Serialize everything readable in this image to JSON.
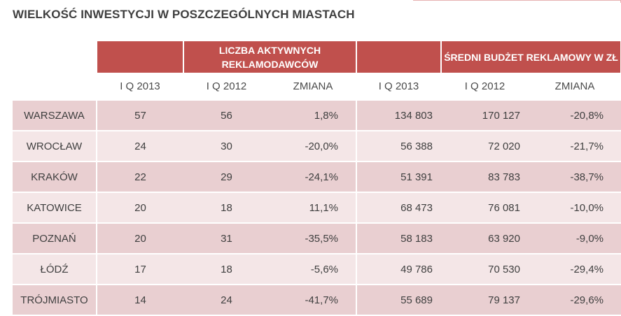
{
  "title": "WIELKOŚĆ INWESTYCJI W POSZCZEGÓLNYCH MIASTACH",
  "header": {
    "group1_label": "LICZBA AKTYWNYCH REKLAMODAWCÓW",
    "group2_label": "ŚREDNI BUDŻET REKLAMOWY W ZŁ",
    "sub_labels": [
      "I Q 2013",
      "I Q 2012",
      "ZMIANA",
      "I Q 2013",
      "I Q 2012",
      "ZMIANA"
    ]
  },
  "rows": [
    {
      "city": "WARSZAWA",
      "a2013": "57",
      "a2012": "56",
      "achg": "1,8%",
      "b2013": "134 803",
      "b2012": "170 127",
      "bchg": "-20,8%"
    },
    {
      "city": "WROCŁAW",
      "a2013": "24",
      "a2012": "30",
      "achg": "-20,0%",
      "b2013": "56 388",
      "b2012": "72 020",
      "bchg": "-21,7%"
    },
    {
      "city": "KRAKÓW",
      "a2013": "22",
      "a2012": "29",
      "achg": "-24,1%",
      "b2013": "51 391",
      "b2012": "83 783",
      "bchg": "-38,7%"
    },
    {
      "city": "KATOWICE",
      "a2013": "20",
      "a2012": "18",
      "achg": "11,1%",
      "b2013": "68 473",
      "b2012": "76 081",
      "bchg": "-10,0%"
    },
    {
      "city": "POZNAŃ",
      "a2013": "20",
      "a2012": "31",
      "achg": "-35,5%",
      "b2013": "58 183",
      "b2012": "63 920",
      "bchg": "-9,0%"
    },
    {
      "city": "ŁÓDŹ",
      "a2013": "17",
      "a2012": "18",
      "achg": "-5,6%",
      "b2013": "49 786",
      "b2012": "70 530",
      "bchg": "-29,4%"
    },
    {
      "city": "TRÓJMIASTO",
      "a2013": "14",
      "a2012": "24",
      "achg": "-41,7%",
      "b2013": "55 689",
      "b2012": "79 137",
      "bchg": "-29,6%"
    }
  ],
  "colors": {
    "header_bg": "#c0504d",
    "row_dark": "#e9cfd1",
    "row_light": "#f4e6e7"
  }
}
